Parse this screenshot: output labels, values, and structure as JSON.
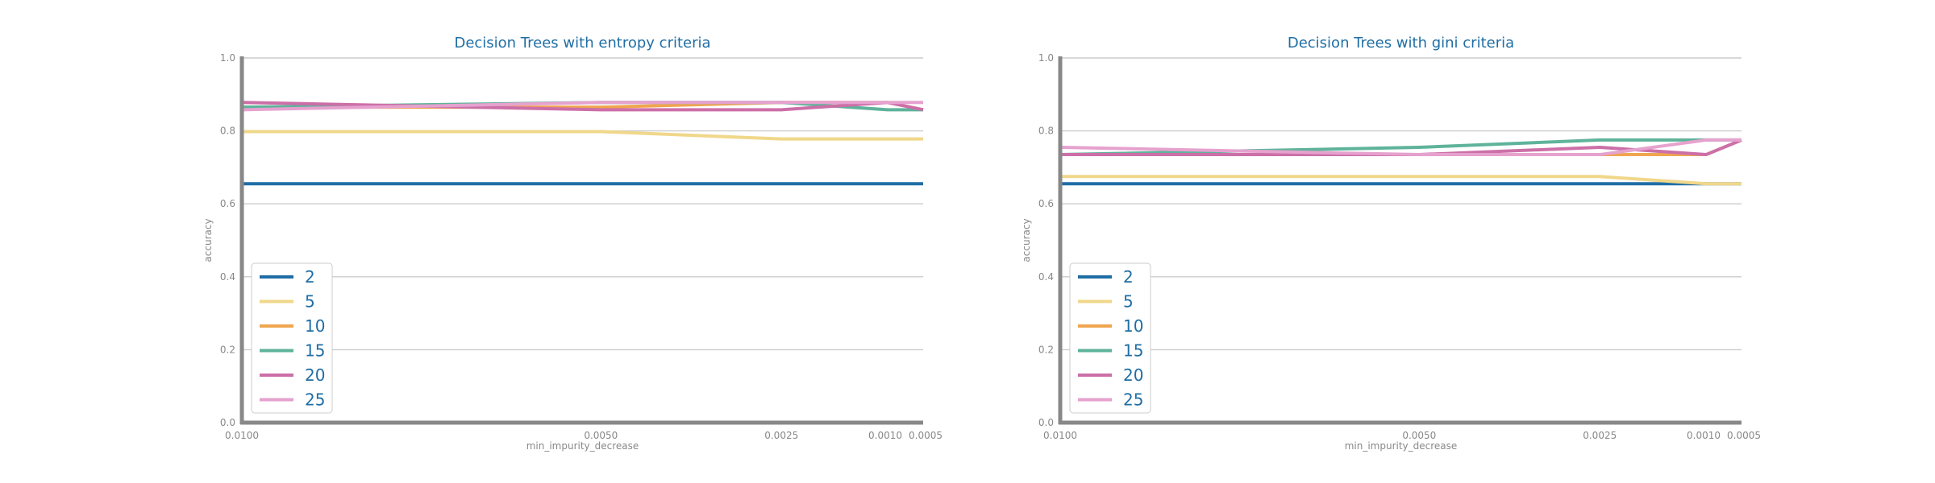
{
  "colors": {
    "2": "#1f6ea5",
    "5": "#f0d78a",
    "10": "#f0a550",
    "15": "#5fb39a",
    "20": "#cc6fa8",
    "25": "#e6a2cf",
    "text": "#1f6ea5",
    "axis": "#888888",
    "grid": "#cccccc"
  },
  "chart_data": [
    {
      "type": "line",
      "title": "Decision Trees with entropy criteria",
      "xlabel": "min_impurity_decrease",
      "ylabel": "accuracy",
      "x": [
        0.01,
        0.005,
        0.0025,
        0.001,
        0.0005
      ],
      "x_tick_labels": [
        "0.0100",
        "0.0050",
        "0.0025",
        "0.0010",
        "0.0005"
      ],
      "y_ticks": [
        0.0,
        0.2,
        0.4,
        0.6,
        0.8,
        1.0
      ],
      "y_tick_labels": [
        "0.0",
        "0.2",
        "0.4",
        "0.6",
        "0.8",
        "1.0"
      ],
      "ylim": [
        0,
        1
      ],
      "grid": true,
      "legend_position": "lower-left",
      "series": [
        {
          "name": "2",
          "values": [
            0.655,
            0.655,
            0.655,
            0.655,
            0.655
          ]
        },
        {
          "name": "5",
          "values": [
            0.798,
            0.798,
            0.778,
            0.778,
            0.778
          ]
        },
        {
          "name": "10",
          "values": [
            0.865,
            0.865,
            0.878,
            0.878,
            0.858
          ]
        },
        {
          "name": "15",
          "values": [
            0.865,
            0.878,
            0.878,
            0.858,
            0.858
          ]
        },
        {
          "name": "20",
          "values": [
            0.878,
            0.858,
            0.858,
            0.878,
            0.858
          ]
        },
        {
          "name": "25",
          "values": [
            0.858,
            0.878,
            0.878,
            0.878,
            0.878
          ]
        }
      ]
    },
    {
      "type": "line",
      "title": "Decision Trees with gini criteria",
      "xlabel": "min_impurity_decrease",
      "ylabel": "accuracy",
      "x": [
        0.01,
        0.005,
        0.0025,
        0.001,
        0.0005
      ],
      "x_tick_labels": [
        "0.0100",
        "0.0050",
        "0.0025",
        "0.0010",
        "0.0005"
      ],
      "y_ticks": [
        0.0,
        0.2,
        0.4,
        0.6,
        0.8,
        1.0
      ],
      "y_tick_labels": [
        "0.0",
        "0.2",
        "0.4",
        "0.6",
        "0.8",
        "1.0"
      ],
      "ylim": [
        0,
        1
      ],
      "grid": true,
      "legend_position": "lower-left",
      "series": [
        {
          "name": "2",
          "values": [
            0.655,
            0.655,
            0.655,
            0.655,
            0.655
          ]
        },
        {
          "name": "5",
          "values": [
            0.675,
            0.675,
            0.675,
            0.655,
            0.655
          ]
        },
        {
          "name": "10",
          "values": [
            0.735,
            0.735,
            0.735,
            0.735,
            0.775
          ]
        },
        {
          "name": "15",
          "values": [
            0.735,
            0.755,
            0.775,
            0.775,
            0.775
          ]
        },
        {
          "name": "20",
          "values": [
            0.735,
            0.735,
            0.755,
            0.735,
            0.775
          ]
        },
        {
          "name": "25",
          "values": [
            0.755,
            0.735,
            0.735,
            0.775,
            0.775
          ]
        }
      ]
    }
  ]
}
